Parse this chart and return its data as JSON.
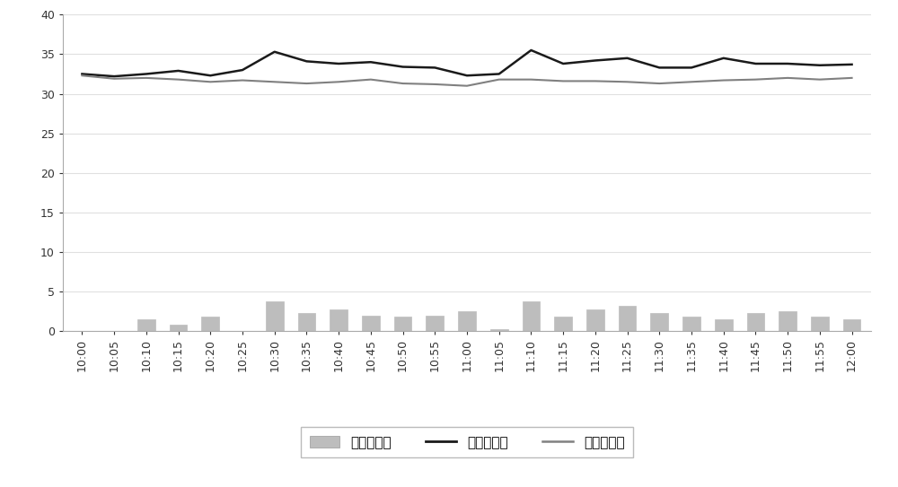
{
  "x_labels": [
    "10:00",
    "10:05",
    "10:10",
    "10:15",
    "10:20",
    "10:25",
    "10:30",
    "10:35",
    "10:40",
    "10:45",
    "10:50",
    "10:55",
    "11:00",
    "11:05",
    "11:10",
    "11:15",
    "11:20",
    "11:25",
    "11:30",
    "11:35",
    "11:40",
    "11:45",
    "11:50",
    "11:55",
    "12:00"
  ],
  "before_load": [
    32.5,
    32.2,
    32.5,
    32.9,
    32.3,
    33.0,
    35.3,
    34.1,
    33.8,
    34.0,
    33.4,
    33.3,
    32.3,
    32.5,
    35.5,
    33.8,
    34.2,
    34.5,
    33.3,
    33.3,
    34.5,
    33.8,
    33.8,
    33.6,
    33.7
  ],
  "after_load": [
    32.3,
    31.9,
    32.0,
    31.8,
    31.5,
    31.7,
    31.5,
    31.3,
    31.5,
    31.8,
    31.3,
    31.2,
    31.0,
    31.8,
    31.8,
    31.6,
    31.6,
    31.5,
    31.3,
    31.5,
    31.7,
    31.8,
    32.0,
    31.8,
    32.0
  ],
  "reduction": [
    0.0,
    0.0,
    1.5,
    0.8,
    1.8,
    0.0,
    3.8,
    2.3,
    2.8,
    2.0,
    1.8,
    2.0,
    2.5,
    0.3,
    3.8,
    1.8,
    2.7,
    3.2,
    2.3,
    1.8,
    1.5,
    2.3,
    2.5,
    1.8,
    1.5
  ],
  "bar_color": "#bdbdbd",
  "before_color": "#1a1a1a",
  "after_color": "#808080",
  "ylim": [
    0,
    40
  ],
  "yticks": [
    0,
    5,
    10,
    15,
    20,
    25,
    30,
    35,
    40
  ],
  "legend_labels": [
    "负荷削减量",
    "响应前负荷",
    "响应后负荷"
  ],
  "background_color": "#ffffff",
  "border_color": "#aaaaaa",
  "grid_color": "#e0e0e0"
}
